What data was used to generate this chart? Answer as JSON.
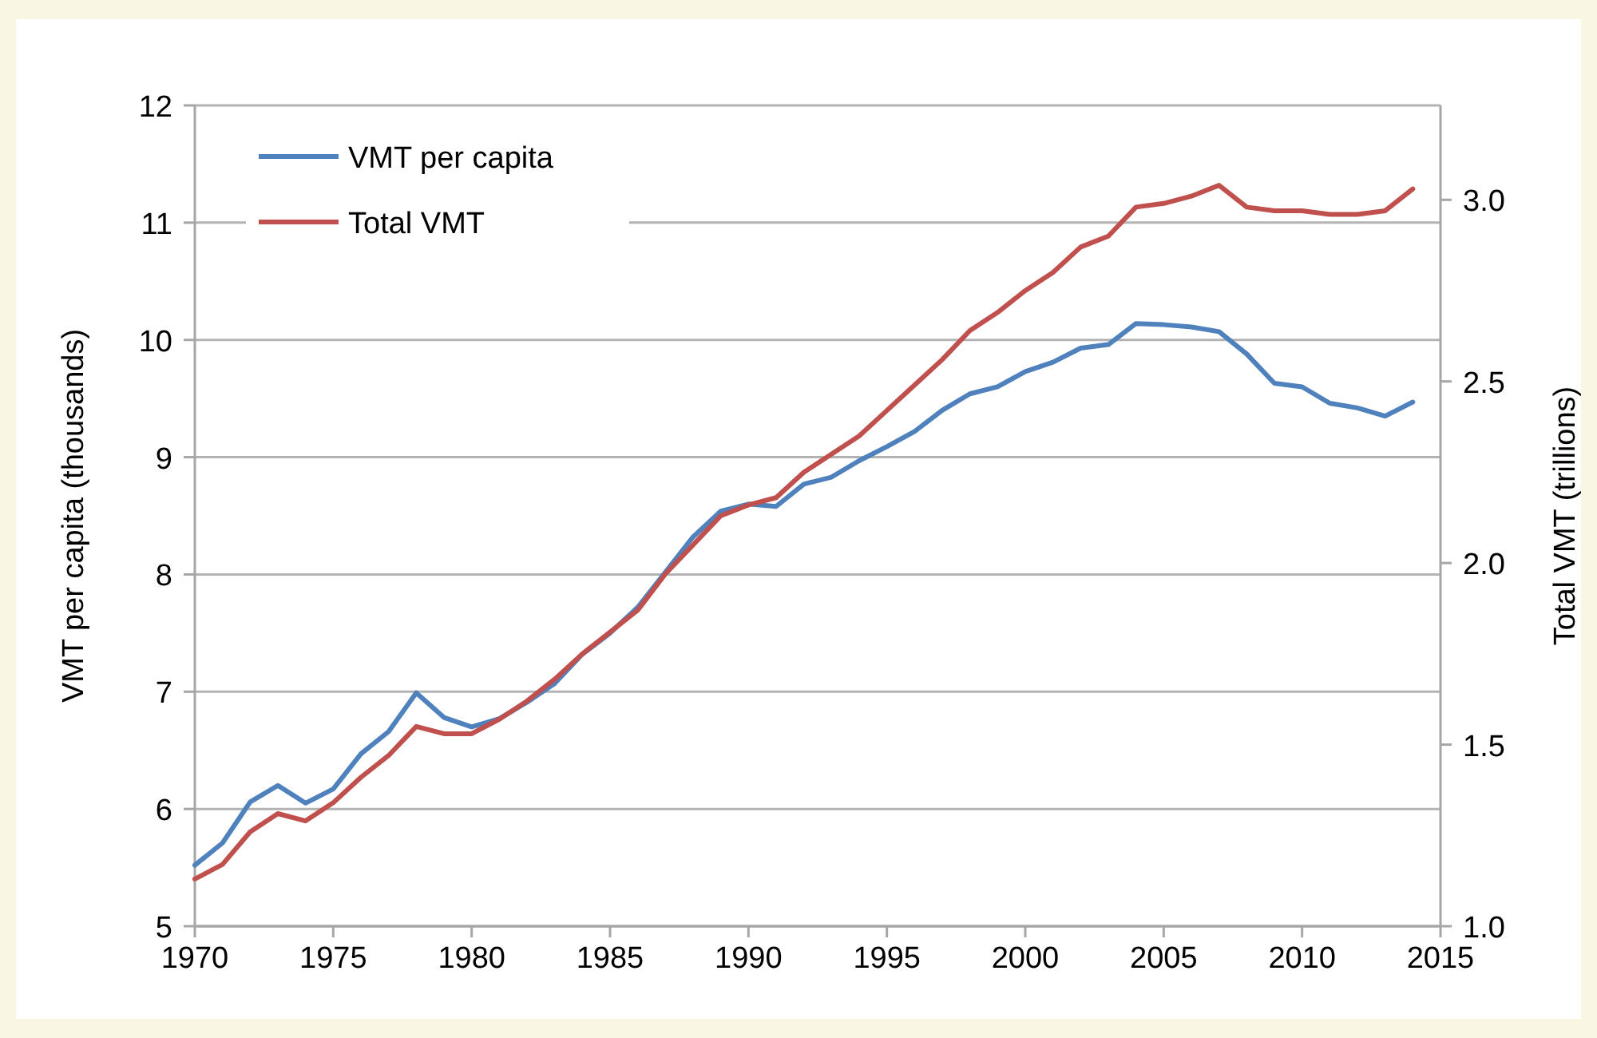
{
  "chart_data": {
    "type": "line",
    "xlabel": null,
    "ylabel": "VMT per capita (thousands)",
    "y2label": "Total VMT (trillions)",
    "x": [
      1970,
      1971,
      1972,
      1973,
      1974,
      1975,
      1976,
      1977,
      1978,
      1979,
      1980,
      1981,
      1982,
      1983,
      1984,
      1985,
      1986,
      1987,
      1988,
      1989,
      1990,
      1991,
      1992,
      1993,
      1994,
      1995,
      1996,
      1997,
      1998,
      1999,
      2000,
      2001,
      2002,
      2003,
      2004,
      2005,
      2006,
      2007,
      2008,
      2009,
      2010,
      2011,
      2012,
      2013,
      2014
    ],
    "series": [
      {
        "name": "VMT per capita",
        "color": "#4f81bd",
        "values": [
          5.52,
          5.71,
          6.06,
          6.2,
          6.05,
          6.17,
          6.47,
          6.66,
          6.99,
          6.78,
          6.7,
          6.77,
          6.91,
          7.07,
          7.32,
          7.5,
          7.72,
          8.02,
          8.32,
          8.54,
          8.6,
          8.58,
          8.77,
          8.83,
          8.97,
          9.09,
          9.22,
          9.4,
          9.54,
          9.6,
          9.73,
          9.81,
          9.93,
          9.96,
          10.14,
          10.13,
          10.11,
          10.07,
          9.88,
          9.63,
          9.6,
          9.46,
          9.42,
          9.35,
          9.47
        ]
      },
      {
        "name": "Total VMT",
        "color": "#c0504d",
        "axis": "y2",
        "values": [
          1.13,
          1.17,
          1.26,
          1.31,
          1.29,
          1.34,
          1.41,
          1.47,
          1.55,
          1.53,
          1.53,
          1.57,
          1.62,
          1.68,
          1.75,
          1.81,
          1.87,
          1.97,
          2.05,
          2.13,
          2.16,
          2.18,
          2.25,
          2.3,
          2.35,
          2.42,
          2.49,
          2.56,
          2.64,
          2.69,
          2.75,
          2.8,
          2.87,
          2.9,
          2.98,
          2.99,
          3.01,
          3.04,
          2.98,
          2.97,
          2.97,
          2.96,
          2.96,
          2.97,
          3.03
        ]
      }
    ],
    "xlim": [
      1970,
      2015
    ],
    "xticks": [
      1970,
      1975,
      1980,
      1985,
      1990,
      1995,
      2000,
      2005,
      2010,
      2015
    ],
    "ylim": [
      5,
      12
    ],
    "yticks": [
      5,
      6,
      7,
      8,
      9,
      10,
      11,
      12
    ],
    "y2lim": [
      1,
      3.26
    ],
    "y2ticks": [
      {
        "value": 1,
        "label": "1.0"
      },
      {
        "value": 1.5,
        "label": "1.5"
      },
      {
        "value": 2,
        "label": "2.0"
      },
      {
        "value": 2.5,
        "label": "2.5"
      },
      {
        "value": 3,
        "label": "3.0"
      }
    ],
    "grid": "y",
    "legend": "top left",
    "marker": "none",
    "line_style": "solid"
  }
}
